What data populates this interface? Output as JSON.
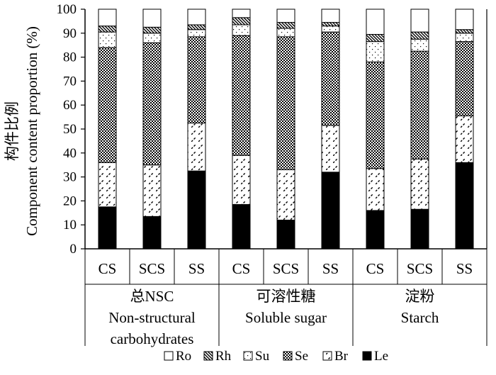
{
  "chart_data": {
    "type": "bar",
    "stacked": true,
    "ylabel_cn": "构件比例",
    "ylabel": "Component content proportion (%)",
    "ylim": [
      0,
      100
    ],
    "yticks": [
      "0",
      "10",
      "20",
      "30",
      "40",
      "50",
      "60",
      "70",
      "80",
      "90",
      "100"
    ],
    "categories": [
      "CS",
      "SCS",
      "SS",
      "CS",
      "SCS",
      "SS",
      "CS",
      "SCS",
      "SS"
    ],
    "groups": [
      {
        "cn": "总NSC",
        "en1": "Non-structural",
        "en2": "carbohydrates"
      },
      {
        "cn": "可溶性糖",
        "en1": "Soluble sugar",
        "en2": ""
      },
      {
        "cn": "淀粉",
        "en1": "Starch",
        "en2": ""
      }
    ],
    "series": [
      {
        "name": "Le",
        "pattern": "solid",
        "values": [
          17.5,
          13.5,
          32.5,
          18.5,
          12,
          32,
          16,
          16.5,
          36
        ]
      },
      {
        "name": "Br",
        "pattern": "diagonal-dash",
        "values": [
          18.5,
          21.5,
          20,
          20.5,
          21,
          19.5,
          17.5,
          21,
          19.5
        ]
      },
      {
        "name": "Se",
        "pattern": "checker",
        "values": [
          48,
          51,
          36,
          50,
          55.5,
          39,
          44.5,
          45,
          31
        ]
      },
      {
        "name": "Su",
        "pattern": "dots",
        "values": [
          6.5,
          4,
          3,
          4.5,
          3.5,
          2.5,
          8.5,
          5,
          3.5
        ]
      },
      {
        "name": "Rh",
        "pattern": "hatch",
        "values": [
          2.5,
          2.5,
          2,
          3,
          2.5,
          1.5,
          3,
          3,
          1.5
        ]
      },
      {
        "name": "Ro",
        "pattern": "white",
        "values": [
          7,
          7.5,
          6.5,
          3.5,
          5.5,
          5.5,
          10.5,
          9.5,
          8.5
        ]
      }
    ],
    "legend_order": [
      "Ro",
      "Rh",
      "Su",
      "Se",
      "Br",
      "Le"
    ],
    "legend_position": "bottom"
  }
}
